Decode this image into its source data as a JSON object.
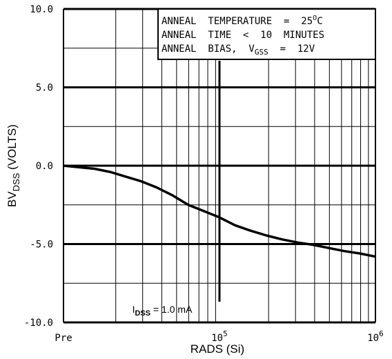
{
  "chart_data": {
    "type": "line",
    "xlabel": "RADS (Si)",
    "ylabel": {
      "main": "BV",
      "sub": "DSS",
      "unit": "(VOLTS)"
    },
    "x_scale": "log",
    "x_ticks": [
      {
        "label": "Pre",
        "base": "Pre",
        "exp": ""
      },
      {
        "label": "10^5",
        "base": "10",
        "exp": "5"
      },
      {
        "label": "10^6",
        "base": "10",
        "exp": "6"
      }
    ],
    "y_ticks": [
      "10.0",
      "5.0",
      "0.0",
      "-5.0",
      "-10.0"
    ],
    "ylim": [
      -10,
      10
    ],
    "grid": true,
    "annotation_box": {
      "lines": [
        {
          "text": "ANNEAL  TEMPERATURE  =  25",
          "sup": "O",
          "tail": "C"
        },
        {
          "text": "ANNEAL  TIME  <  10  MINUTES",
          "sup": "",
          "tail": ""
        },
        {
          "text": "ANNEAL  BIAS,  V",
          "sub": "GSS",
          "tail": "  =  12V"
        }
      ]
    },
    "vertical_marker": {
      "x": 100000,
      "label_main": "I",
      "label_sub": "DSS",
      "label_tail": " = 1.0 mA"
    },
    "series": [
      {
        "points": [
          [
            0,
            0.0
          ],
          [
            0.05,
            -0.1
          ],
          [
            0.1,
            -0.2
          ],
          [
            0.15,
            -0.4
          ],
          [
            0.2,
            -0.7
          ],
          [
            0.25,
            -1.0
          ],
          [
            0.3,
            -1.4
          ],
          [
            0.35,
            -1.9
          ],
          [
            0.4,
            -2.5
          ],
          [
            0.45,
            -2.9
          ],
          [
            0.5,
            -3.3
          ],
          [
            0.55,
            -3.8
          ],
          [
            0.6,
            -4.15
          ],
          [
            0.65,
            -4.45
          ],
          [
            0.7,
            -4.7
          ],
          [
            0.75,
            -4.9
          ],
          [
            0.8,
            -5.05
          ],
          [
            0.85,
            -5.25
          ],
          [
            0.9,
            -5.45
          ],
          [
            0.95,
            -5.6
          ],
          [
            1.0,
            -5.8
          ]
        ]
      }
    ]
  }
}
